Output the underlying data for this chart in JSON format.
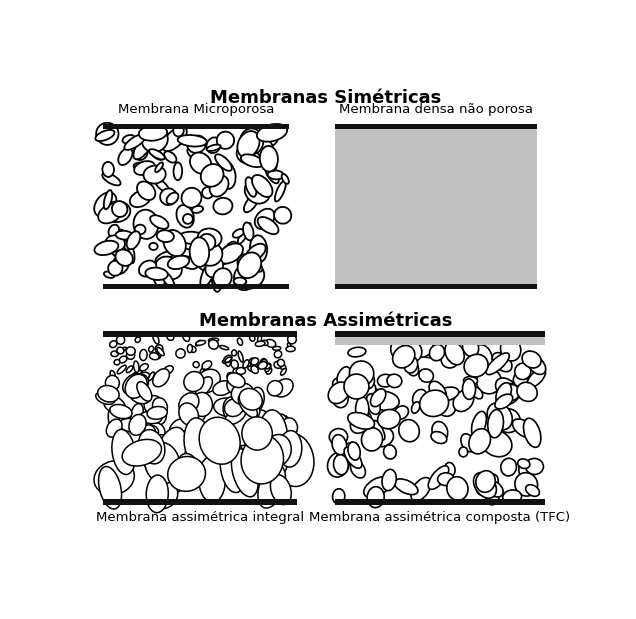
{
  "title_sym": "Membranas Simétricas",
  "title_asym": "Membranas Assimétricas",
  "label_1": "Membrana Microporosa",
  "label_2": "Membrana densa não porosa",
  "label_3": "Membrana assimétrica integral",
  "label_4": "Membrana assimétrica composta (TFC)",
  "bg_color": "#ffffff",
  "gray_fill": "#c0c0c0",
  "dark_bar": "#111111",
  "gray_bar": "#aaaaaa",
  "pore_edge": "#000000",
  "pore_fill": "#ffffff",
  "title_fontsize": 13,
  "label_fontsize": 9.5,
  "bar_thick": 7,
  "bar_gray_thick": 5
}
